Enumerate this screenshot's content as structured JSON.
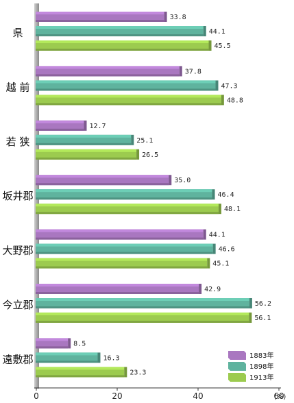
{
  "chart_data": {
    "type": "bar",
    "orientation": "horizontal",
    "categories": [
      "県",
      "越 前",
      "若 狭",
      "坂井郡",
      "大野郡",
      "今立郡",
      "遠敷郡"
    ],
    "series": [
      {
        "name": "1883年",
        "color": "#a977c0",
        "values": [
          33.8,
          37.8,
          12.7,
          35.0,
          44.1,
          42.9,
          8.5
        ]
      },
      {
        "name": "1898年",
        "color": "#5fb39e",
        "values": [
          44.1,
          47.3,
          25.1,
          46.4,
          46.6,
          56.2,
          16.3
        ]
      },
      {
        "name": "1913年",
        "color": "#9ccb4f",
        "values": [
          45.5,
          48.8,
          26.5,
          48.1,
          45.1,
          56.1,
          23.3
        ]
      }
    ],
    "value_labels": [
      [
        "33.8",
        "37.8",
        "12.7",
        "35.0",
        "44.1",
        "42.9",
        "8.5"
      ],
      [
        "44.1",
        "47.3",
        "25.1",
        "46.4",
        "46.6",
        "56.2",
        "16.3"
      ],
      [
        "45.5",
        "48.8",
        "26.5",
        "48.1",
        "45.1",
        "56.1",
        "23.3"
      ]
    ],
    "x_ticks": [
      "0",
      "20",
      "40",
      "60"
    ],
    "x_tick_values": [
      0,
      20,
      40,
      60
    ],
    "x_unit": "(%)",
    "xlim": [
      0,
      60
    ],
    "legend_position": "bottom-right",
    "grid": false
  }
}
